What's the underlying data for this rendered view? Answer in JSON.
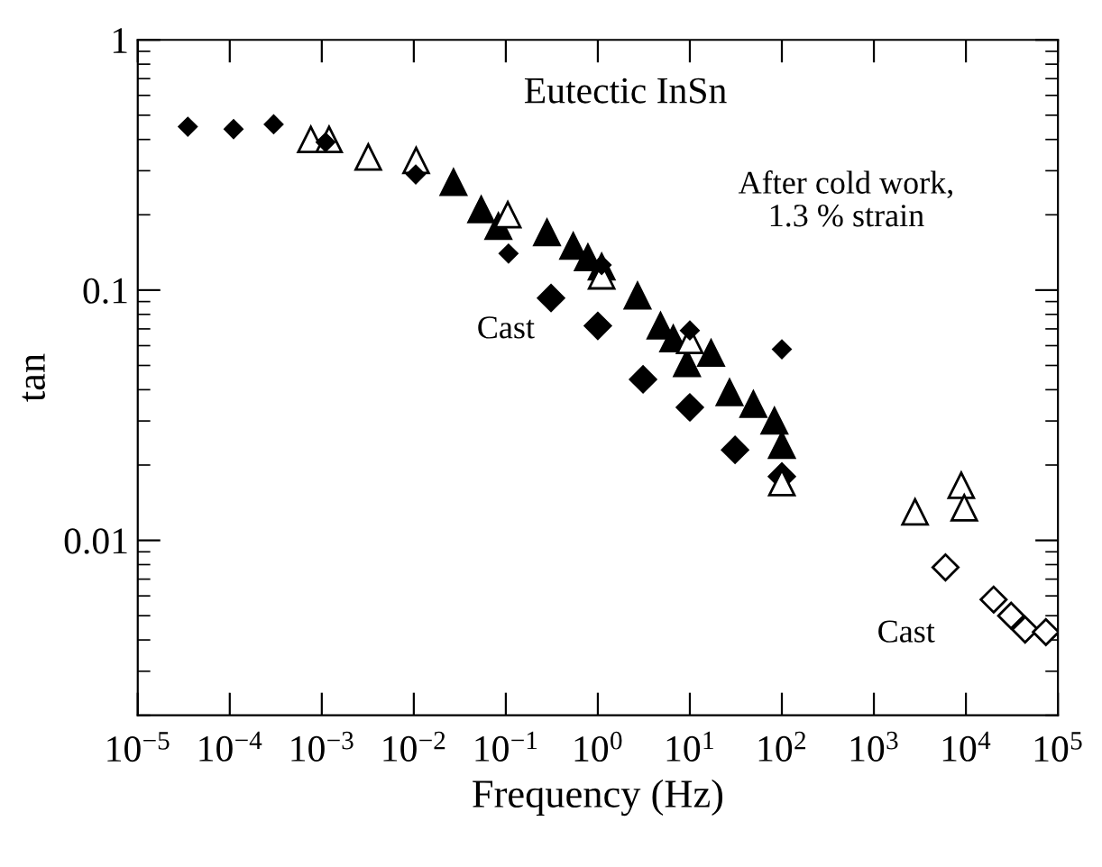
{
  "chart_data": {
    "type": "scatter",
    "title": "Eutectic InSn",
    "xlabel": "Frequency (Hz)",
    "ylabel": "tan",
    "log": "xy",
    "grid": false,
    "legend": false,
    "xlim": [
      1e-05,
      100000
    ],
    "ylim": [
      0.002,
      1
    ],
    "xticks": [
      {
        "value": 1e-05,
        "label": "10$^{−5}$"
      },
      {
        "value": 0.0001,
        "label": "10$^{−4}$"
      },
      {
        "value": 0.001,
        "label": "10$^{−3}$"
      },
      {
        "value": 0.01,
        "label": "10$^{−2}$"
      },
      {
        "value": 0.1,
        "label": "10$^{−1}$"
      },
      {
        "value": 1,
        "label": "10$^{0}$"
      },
      {
        "value": 10,
        "label": "10$^{1}$"
      },
      {
        "value": 100,
        "label": "10$^{2}$"
      },
      {
        "value": 1000,
        "label": "10$^{3}$"
      },
      {
        "value": 10000,
        "label": "10$^{4}$"
      },
      {
        "value": 100000,
        "label": "10$^{5}$"
      }
    ],
    "yticks": [
      0.01,
      0.1,
      1
    ],
    "series": [
      {
        "marker": "diamond",
        "color": "#000000",
        "x": [
          3.5e-05,
          0.00011,
          0.0003,
          0.0011,
          0.0105,
          0.107,
          1.1,
          10,
          100
        ],
        "values": [
          0.45,
          0.44,
          0.46,
          0.39,
          0.29,
          0.14,
          0.126,
          0.069,
          0.058
        ]
      },
      {
        "marker": "diamond",
        "color": "#000000",
        "x": [
          0.31,
          1,
          3.1,
          10,
          31,
          100
        ],
        "values": [
          0.093,
          0.072,
          0.044,
          0.034,
          0.023,
          0.018
        ]
      },
      {
        "marker": "triangle",
        "color": "#000000",
        "x": [
          0.027,
          0.054,
          0.083,
          0.28,
          0.54,
          0.78,
          1.1,
          2.7,
          4.8,
          6.6,
          9.3,
          17,
          27,
          49,
          83,
          100
        ],
        "values": [
          0.27,
          0.21,
          0.18,
          0.17,
          0.15,
          0.135,
          0.124,
          0.095,
          0.072,
          0.064,
          0.051,
          0.056,
          0.039,
          0.035,
          0.03,
          0.024
        ]
      },
      {
        "marker": "triangle",
        "color": "#ffffff",
        "x": [
          0.00076,
          0.0012,
          0.0032,
          0.0106,
          0.105,
          1.1,
          10,
          100,
          2800,
          8900,
          9600
        ],
        "values": [
          0.4,
          0.4,
          0.34,
          0.33,
          0.2,
          0.114,
          0.063,
          0.017,
          0.013,
          0.0166,
          0.0135
        ]
      },
      {
        "marker": "diamond",
        "color": "#ffffff",
        "x": [
          6000,
          20000,
          31000,
          44000,
          74000
        ],
        "values": [
          0.0078,
          0.0058,
          0.005,
          0.0044,
          0.0043
        ]
      }
    ],
    "annotations": [
      "After cold work,\n1.3 % strain",
      "Cast",
      "Cast"
    ]
  }
}
